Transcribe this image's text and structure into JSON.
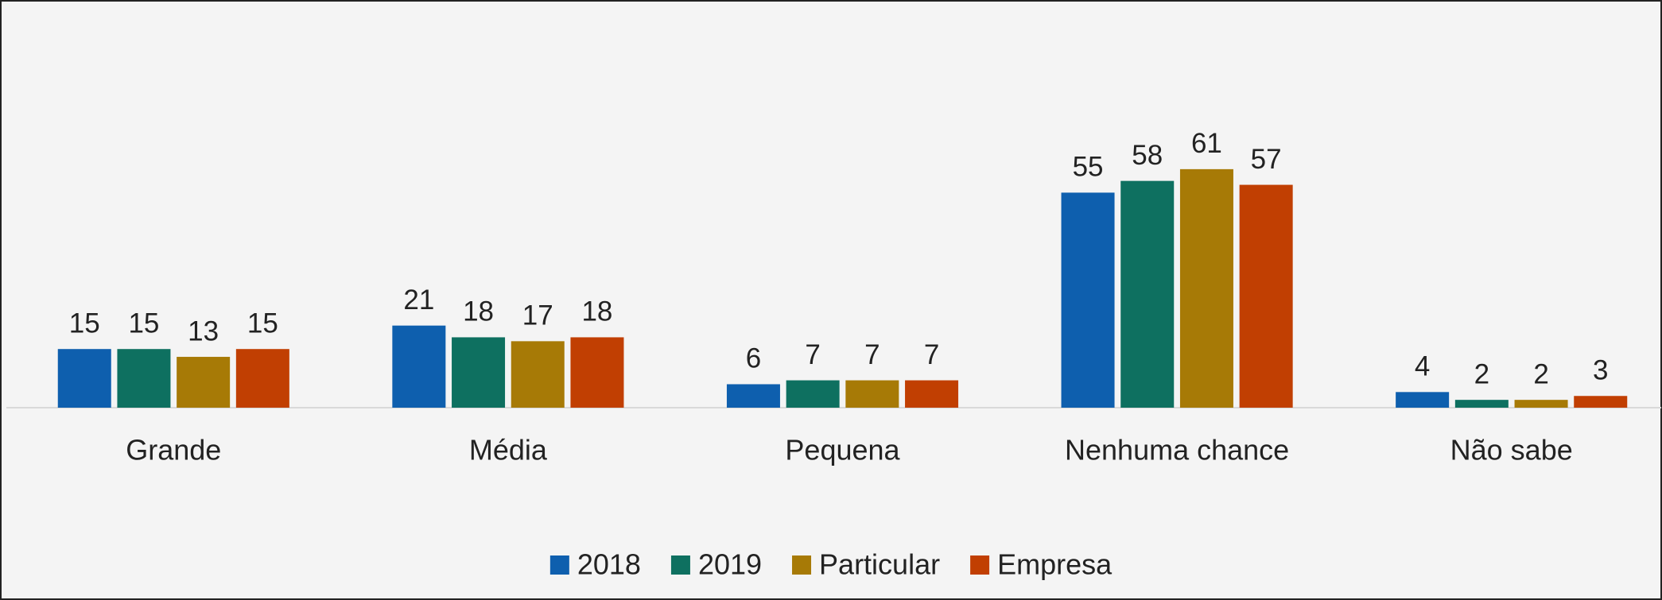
{
  "chart_data": {
    "type": "bar",
    "categories": [
      "Grande",
      "Média",
      "Pequena",
      "Nenhuma chance",
      "Não sabe"
    ],
    "series": [
      {
        "name": "2018",
        "color": "#0e5fae",
        "values": [
          15,
          21,
          6,
          55,
          4
        ]
      },
      {
        "name": "2019",
        "color": "#0e7060",
        "values": [
          15,
          18,
          7,
          58,
          2
        ]
      },
      {
        "name": "Particular",
        "color": "#a77a06",
        "values": [
          13,
          17,
          7,
          61,
          2
        ]
      },
      {
        "name": "Empresa",
        "color": "#c13f02",
        "values": [
          15,
          18,
          7,
          57,
          3
        ]
      }
    ],
    "ylim": [
      0,
      70
    ],
    "legend": "bottom"
  }
}
